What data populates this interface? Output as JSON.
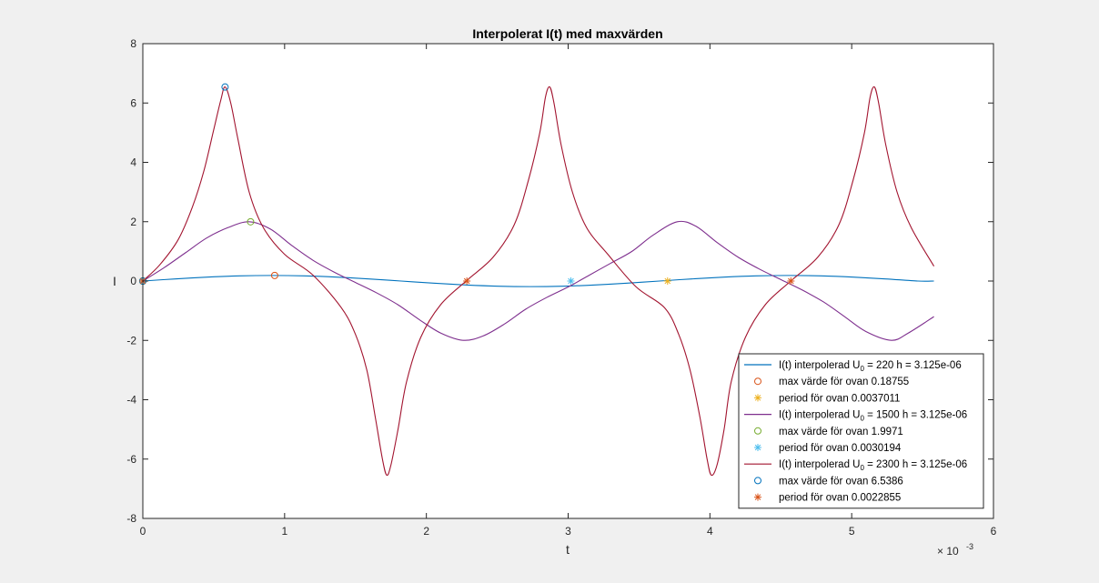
{
  "chart_data": {
    "type": "line",
    "title": "Interpolerat I(t) med maxvärden",
    "xlabel": "t",
    "ylabel": "I",
    "xlim": [
      0,
      0.006
    ],
    "ylim": [
      -8,
      8
    ],
    "x_exponent_label": "× 10",
    "x_exponent_value": "-3",
    "x_ticks": [
      0,
      0.001,
      0.002,
      0.003,
      0.004,
      0.005,
      0.006
    ],
    "x_tick_labels": [
      "0",
      "1",
      "2",
      "3",
      "4",
      "5",
      "6"
    ],
    "y_ticks": [
      -8,
      -6,
      -4,
      -2,
      0,
      2,
      4,
      6,
      8
    ],
    "y_tick_labels": [
      "-8",
      "-6",
      "-4",
      "-2",
      "0",
      "2",
      "4",
      "6",
      "8"
    ],
    "grid": false,
    "legend_position": "bottom-right",
    "series": [
      {
        "kind": "line",
        "color": "#0072BD",
        "legend_prefix": "I(t) interpolerad U",
        "legend_sub": "0",
        "legend_suffix": " = 220 h = 3.125e-06",
        "x": [
          0,
          0.000228,
          0.000455,
          0.000683,
          0.000911,
          0.001139,
          0.001367,
          0.001594,
          0.001822,
          0.00205,
          0.002278,
          0.002506,
          0.002733,
          0.002961,
          0.003189,
          0.003417,
          0.003644,
          0.003872,
          0.0041,
          0.004328,
          0.004556,
          0.004783,
          0.005011,
          0.005239,
          0.005467,
          0.00558
        ],
        "y": [
          0,
          0.072,
          0.133,
          0.174,
          0.188,
          0.174,
          0.133,
          0.072,
          0.0,
          -0.072,
          -0.133,
          -0.174,
          -0.188,
          -0.174,
          -0.133,
          -0.072,
          0.0,
          0.072,
          0.133,
          0.174,
          0.188,
          0.174,
          0.133,
          0.072,
          0.0,
          0.0
        ]
      },
      {
        "kind": "marker",
        "marker": "circle",
        "color": "#D95319",
        "legend_text": "max värde för ovan 0.18755",
        "x": [
          0,
          0.00093
        ],
        "y": [
          0,
          0.18755
        ]
      },
      {
        "kind": "marker",
        "marker": "star",
        "color": "#EDB120",
        "legend_text": "period för ovan 0.0037011",
        "x": [
          0,
          0.0037011
        ],
        "y": [
          0,
          0
        ]
      },
      {
        "kind": "line",
        "color": "#7E2F8E",
        "legend_prefix": "I(t) interpolerad U",
        "legend_sub": "0",
        "legend_suffix": " = 1500 h = 3.125e-06",
        "x": [
          0,
          0.00015,
          0.0003,
          0.00045,
          0.0006,
          0.00075,
          0.0009,
          0.00105,
          0.0012,
          0.00135,
          0.0015,
          0.00165,
          0.0018,
          0.00195,
          0.0021,
          0.00226,
          0.0024,
          0.00255,
          0.0027,
          0.00285,
          0.003,
          0.00315,
          0.0033,
          0.00345,
          0.0036,
          0.00377,
          0.0039,
          0.00405,
          0.0042,
          0.00435,
          0.0045,
          0.00465,
          0.0048,
          0.00495,
          0.0051,
          0.00528,
          0.0054,
          0.00558
        ],
        "y": [
          0,
          0.45,
          0.95,
          1.45,
          1.8,
          1.997,
          1.75,
          1.2,
          0.7,
          0.3,
          -0.05,
          -0.4,
          -0.8,
          -1.3,
          -1.75,
          -1.997,
          -1.85,
          -1.45,
          -0.95,
          -0.55,
          -0.2,
          0.2,
          0.6,
          1.0,
          1.55,
          1.997,
          1.85,
          1.3,
          0.8,
          0.4,
          0.05,
          -0.3,
          -0.7,
          -1.2,
          -1.7,
          -1.997,
          -1.75,
          -1.2
        ]
      },
      {
        "kind": "marker",
        "marker": "circle",
        "color": "#77AC30",
        "legend_text": "max värde för ovan 1.9971",
        "x": [
          0,
          0.00076
        ],
        "y": [
          0,
          1.9971
        ]
      },
      {
        "kind": "marker",
        "marker": "star",
        "color": "#4DBEEE",
        "legend_text": "period för ovan 0.0030194",
        "x": [
          0,
          0.0030194
        ],
        "y": [
          0,
          0
        ]
      },
      {
        "kind": "line",
        "color": "#A2142F",
        "legend_prefix": "I(t) interpolerad U",
        "legend_sub": "0",
        "legend_suffix": " = 2300 h = 3.125e-06",
        "x": [
          0,
          0.00012,
          0.00025,
          0.00035,
          0.00043,
          0.0005,
          0.00055,
          0.00058,
          0.00062,
          0.00067,
          0.00075,
          0.00085,
          0.001,
          0.0012,
          0.0014,
          0.0015,
          0.00158,
          0.00164,
          0.00169,
          0.00172,
          0.00175,
          0.0018,
          0.00186,
          0.00196,
          0.0021,
          0.00228,
          0.00247,
          0.00262,
          0.00272,
          0.0028,
          0.00284,
          0.00287,
          0.0029,
          0.00295,
          0.00303,
          0.00313,
          0.00328,
          0.00348,
          0.00368,
          0.00378,
          0.00386,
          0.00393,
          0.00398,
          0.00401,
          0.00405,
          0.0041,
          0.00415,
          0.00425,
          0.00439,
          0.00457,
          0.00476,
          0.00491,
          0.00501,
          0.00509,
          0.00513,
          0.00516,
          0.00519,
          0.00524,
          0.00532,
          0.00542,
          0.00558
        ],
        "y": [
          0,
          0.55,
          1.4,
          2.5,
          3.7,
          5.1,
          6.1,
          6.54,
          6.0,
          4.8,
          3.0,
          1.8,
          0.9,
          0.2,
          -0.9,
          -1.8,
          -3.0,
          -4.6,
          -6.0,
          -6.54,
          -6.2,
          -5.0,
          -3.4,
          -1.9,
          -0.8,
          0,
          0.8,
          1.9,
          3.4,
          5.0,
          6.2,
          6.54,
          6.0,
          4.6,
          3.0,
          1.8,
          0.9,
          -0.2,
          -0.9,
          -1.8,
          -3.0,
          -4.6,
          -6.0,
          -6.54,
          -6.2,
          -5.0,
          -3.4,
          -1.9,
          -0.8,
          0,
          0.8,
          1.9,
          3.4,
          5.0,
          6.2,
          6.54,
          6.0,
          4.6,
          3.0,
          1.8,
          0.5
        ]
      },
      {
        "kind": "marker",
        "marker": "circle",
        "color": "#0072BD",
        "legend_text": "max värde för ovan 6.5386",
        "x": [
          0,
          0.00058
        ],
        "y": [
          0,
          6.5386
        ]
      },
      {
        "kind": "marker",
        "marker": "star",
        "color": "#D95319",
        "legend_text": "period för ovan 0.0022855",
        "x": [
          0,
          0.0022855,
          0.004571
        ],
        "y": [
          0,
          0,
          0
        ]
      }
    ]
  }
}
